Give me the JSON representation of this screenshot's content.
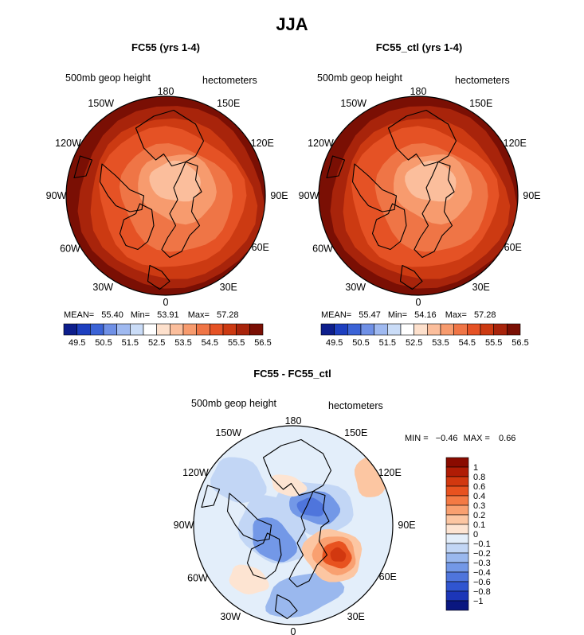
{
  "figure_title": "JJA",
  "chart_data": [
    {
      "type": "heatmap",
      "projection": "north-polar-stereographic",
      "title": "FC55 (yrs 1-4)",
      "field_label": "500mb geop height",
      "units": "hectometers",
      "stats": {
        "mean_label": "MEAN=",
        "mean": "55.40",
        "min_label": "Min=",
        "min": "53.91",
        "max_label": "Max=",
        "max": "57.28"
      },
      "longitude_labels": [
        "180",
        "150E",
        "120E",
        "90E",
        "60E",
        "30E",
        "0",
        "30W",
        "60W",
        "90W",
        "120W",
        "150W"
      ],
      "contour_levels": [
        "49.5",
        "50.5",
        "51.5",
        "52.5",
        "53.5",
        "54.5",
        "55.5",
        "56.5"
      ],
      "colors": [
        "#0d1e8c",
        "#1d3fbf",
        "#3b63d6",
        "#6f90e6",
        "#9fb9f0",
        "#cadcf7",
        "#ffffff",
        "#fde0cc",
        "#fbbe9c",
        "#f79b6e",
        "#ef7546",
        "#e55225",
        "#cc3a12",
        "#a8240b",
        "#7a0f04"
      ]
    },
    {
      "type": "heatmap",
      "projection": "north-polar-stereographic",
      "title": "FC55_ctl (yrs 1-4)",
      "field_label": "500mb geop height",
      "units": "hectometers",
      "stats": {
        "mean_label": "MEAN=",
        "mean": "55.47",
        "min_label": "Min=",
        "min": "54.16",
        "max_label": "Max=",
        "max": "57.28"
      },
      "longitude_labels": [
        "180",
        "150E",
        "120E",
        "90E",
        "60E",
        "30E",
        "0",
        "30W",
        "60W",
        "90W",
        "120W",
        "150W"
      ],
      "contour_levels": [
        "49.5",
        "50.5",
        "51.5",
        "52.5",
        "53.5",
        "54.5",
        "55.5",
        "56.5"
      ],
      "colors": [
        "#0d1e8c",
        "#1d3fbf",
        "#3b63d6",
        "#6f90e6",
        "#9fb9f0",
        "#cadcf7",
        "#ffffff",
        "#fde0cc",
        "#fbbe9c",
        "#f79b6e",
        "#ef7546",
        "#e55225",
        "#cc3a12",
        "#a8240b",
        "#7a0f04"
      ]
    },
    {
      "type": "heatmap",
      "projection": "north-polar-stereographic",
      "title": "FC55 - FC55_ctl",
      "field_label": "500mb geop height",
      "units": "hectometers",
      "stats": {
        "min_label": "MIN =",
        "min": "−0.46",
        "max_label": "MAX =",
        "max": "0.66"
      },
      "longitude_labels": [
        "180",
        "150E",
        "120E",
        "90E",
        "60E",
        "30E",
        "0",
        "30W",
        "60W",
        "90W",
        "120W",
        "150W"
      ],
      "contour_levels": [
        "1",
        "0.8",
        "0.6",
        "0.4",
        "0.3",
        "0.2",
        "0.1",
        "0",
        "−0.1",
        "−0.2",
        "−0.3",
        "−0.4",
        "−0.6",
        "−0.8",
        "−1"
      ],
      "colors": [
        "#8a0b00",
        "#b01c05",
        "#d2380f",
        "#e8521f",
        "#f47a44",
        "#f9a070",
        "#fcc6a2",
        "#fde4d2",
        "#e3eefa",
        "#c2d6f5",
        "#9ab8ee",
        "#7398e7",
        "#4f75dc",
        "#3055d0",
        "#1c36b8",
        "#0a1780"
      ]
    }
  ]
}
